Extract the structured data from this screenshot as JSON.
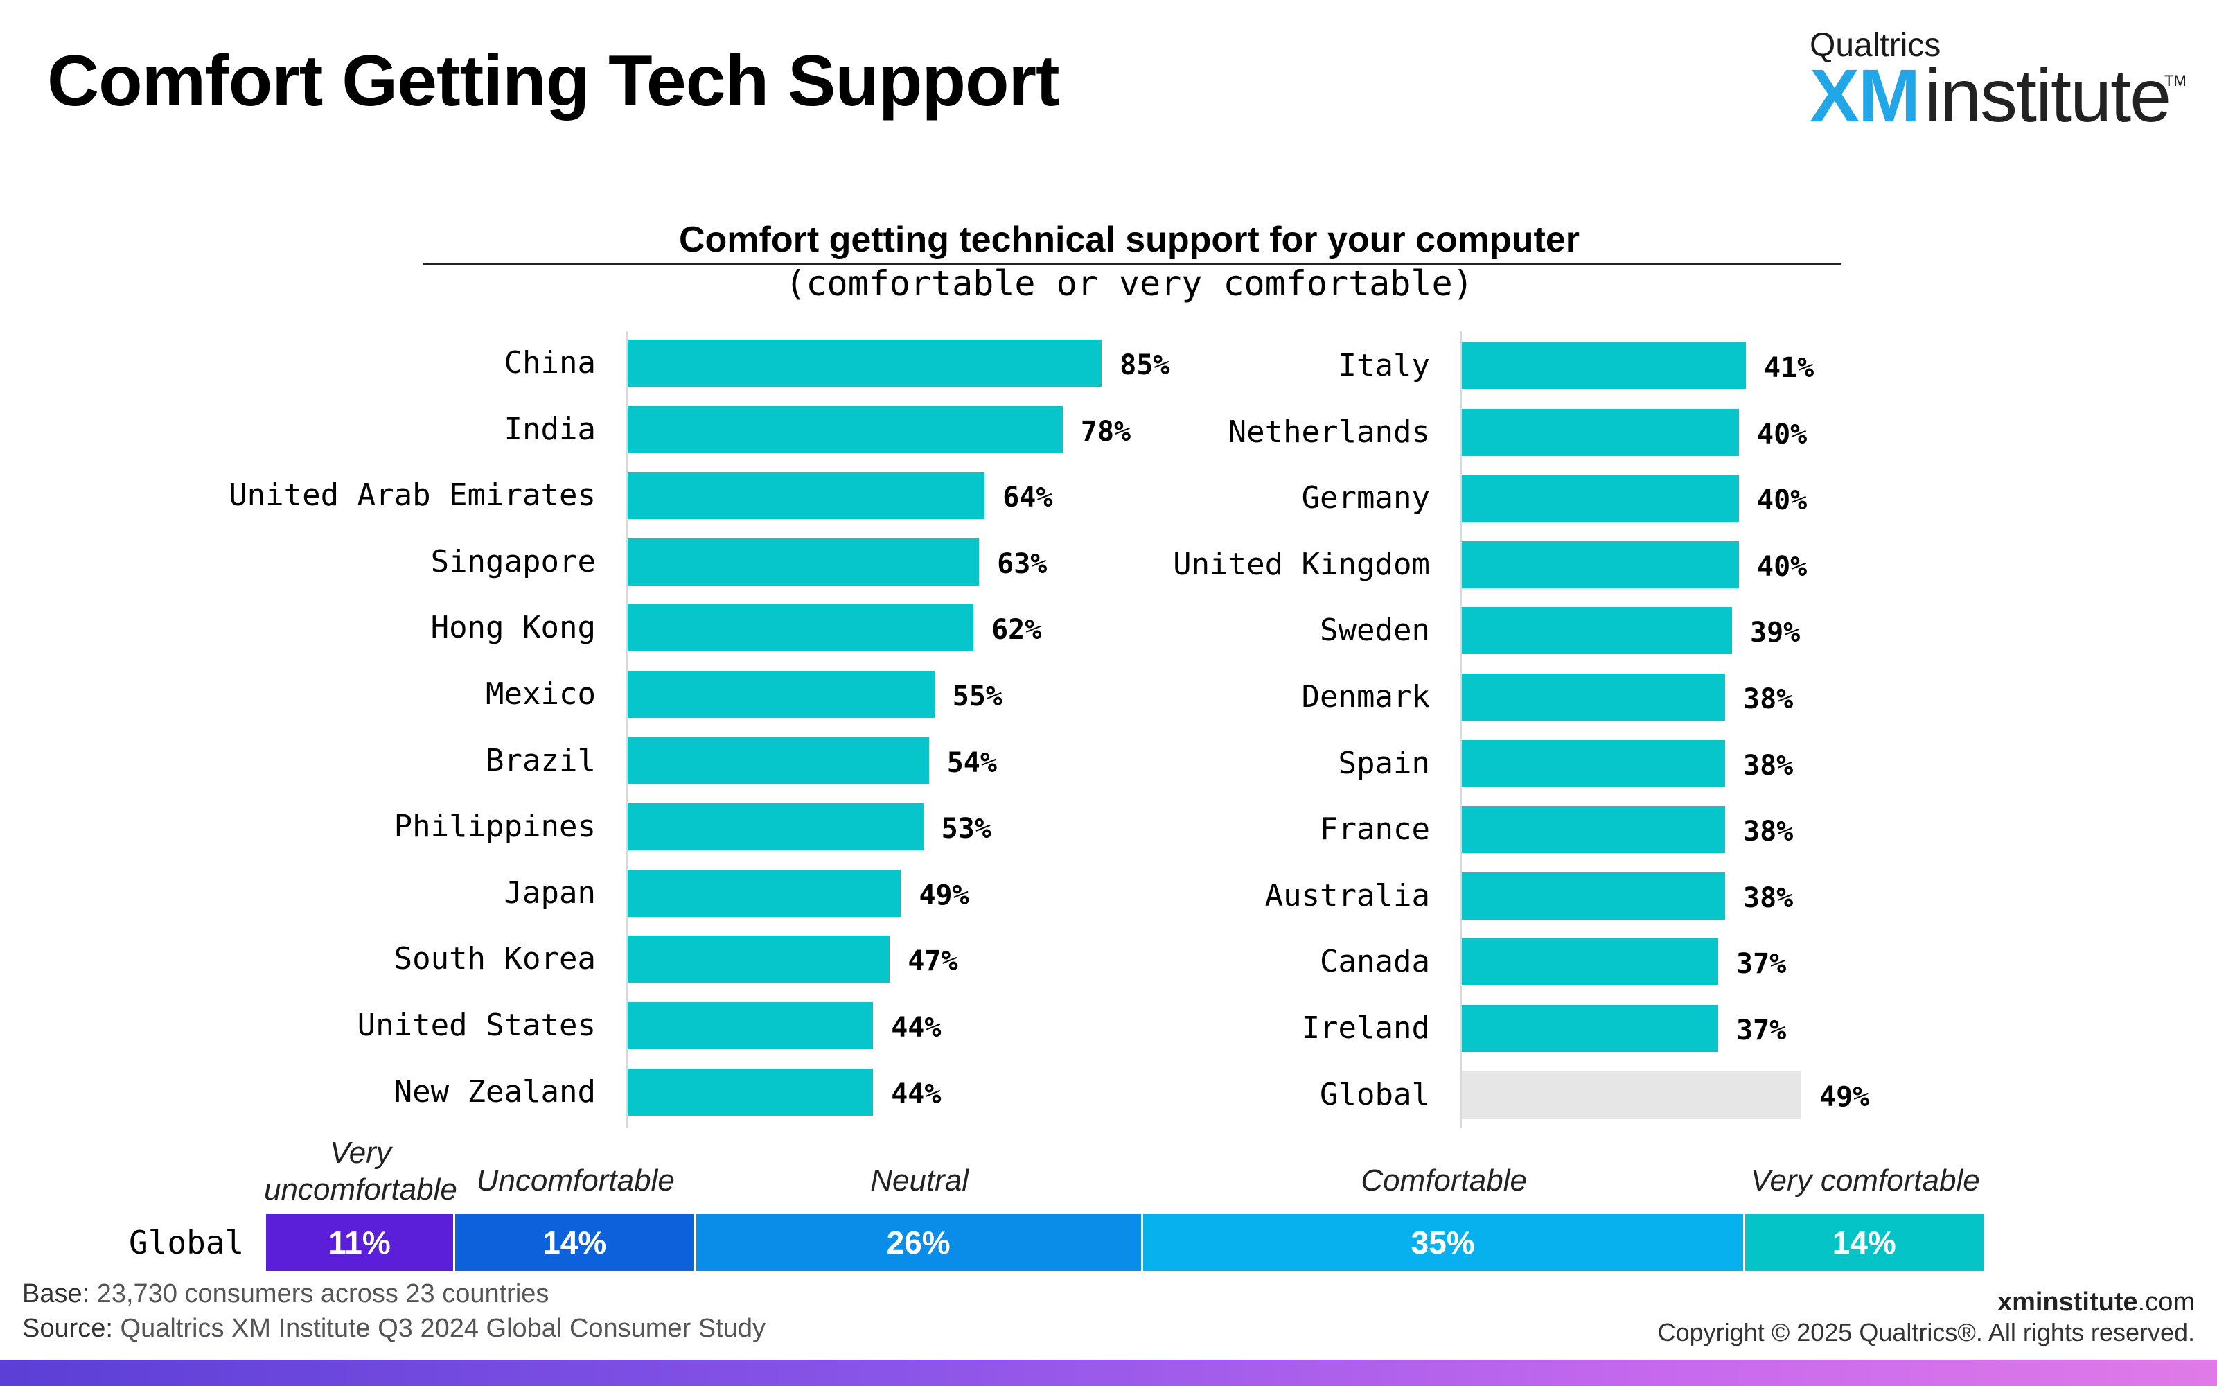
{
  "header": {
    "title": "Comfort Getting Tech Support",
    "logo_top": "Qualtrics",
    "logo_xm": "XM",
    "logo_institute": "institute",
    "logo_tm": "TM"
  },
  "chart_data": [
    {
      "type": "bar",
      "orientation": "horizontal",
      "title": "Comfort getting technical support for your computer",
      "subtitle": "(comfortable or very comfortable)",
      "xlim": [
        0,
        100
      ],
      "value_suffix": "%",
      "colors": {
        "bar": "#06c5cb",
        "global": "#e6e6e6"
      },
      "panels": [
        {
          "categories": [
            "China",
            "India",
            "United Arab Emirates",
            "Singapore",
            "Hong Kong",
            "Mexico",
            "Brazil",
            "Philippines",
            "Japan",
            "South Korea",
            "United States",
            "New Zealand"
          ],
          "values": [
            85,
            78,
            64,
            63,
            62,
            55,
            54,
            53,
            49,
            47,
            44,
            44
          ],
          "labels": [
            "85%",
            "78%",
            "64%",
            "63%",
            "62%",
            "55%",
            "54%",
            "53%",
            "49%",
            "47%",
            "44%",
            "44%"
          ]
        },
        {
          "categories": [
            "Italy",
            "Netherlands",
            "Germany",
            "United Kingdom",
            "Sweden",
            "Denmark",
            "Spain",
            "France",
            "Australia",
            "Canada",
            "Ireland",
            "Global"
          ],
          "values": [
            41,
            40,
            40,
            40,
            39,
            38,
            38,
            38,
            38,
            37,
            37,
            49
          ],
          "labels": [
            "41%",
            "40%",
            "40%",
            "40%",
            "39%",
            "38%",
            "38%",
            "38%",
            "38%",
            "37%",
            "37%",
            "49%"
          ]
        }
      ]
    },
    {
      "type": "bar",
      "orientation": "horizontal",
      "stacked": true,
      "category": "Global",
      "segments": [
        {
          "name": "Very uncomfortable",
          "value": 11,
          "label": "11%",
          "color": "#5b1fd9"
        },
        {
          "name": "Uncomfortable",
          "value": 14,
          "label": "14%",
          "color": "#0d62dc"
        },
        {
          "name": "Neutral",
          "value": 26,
          "label": "26%",
          "color": "#0a8de8"
        },
        {
          "name": "Comfortable",
          "value": 35,
          "label": "35%",
          "color": "#07b1ee"
        },
        {
          "name": "Very comfortable",
          "value": 14,
          "label": "14%",
          "color": "#05c4c8"
        }
      ]
    }
  ],
  "stacked_legend": {
    "very_uncomfortable_line1": "Very",
    "very_uncomfortable_line2": "uncomfortable"
  },
  "footer": {
    "base_label": "Base:",
    "base_text": "23,730 consumers across 23 countries",
    "source_label": "Source:",
    "source_text": "Qualtrics XM Institute Q3 2024 Global Consumer Study",
    "site_bold": "xminstitute",
    "site_rest": ".com",
    "copyright": "Copyright © 2025 Qualtrics®. All rights reserved."
  }
}
